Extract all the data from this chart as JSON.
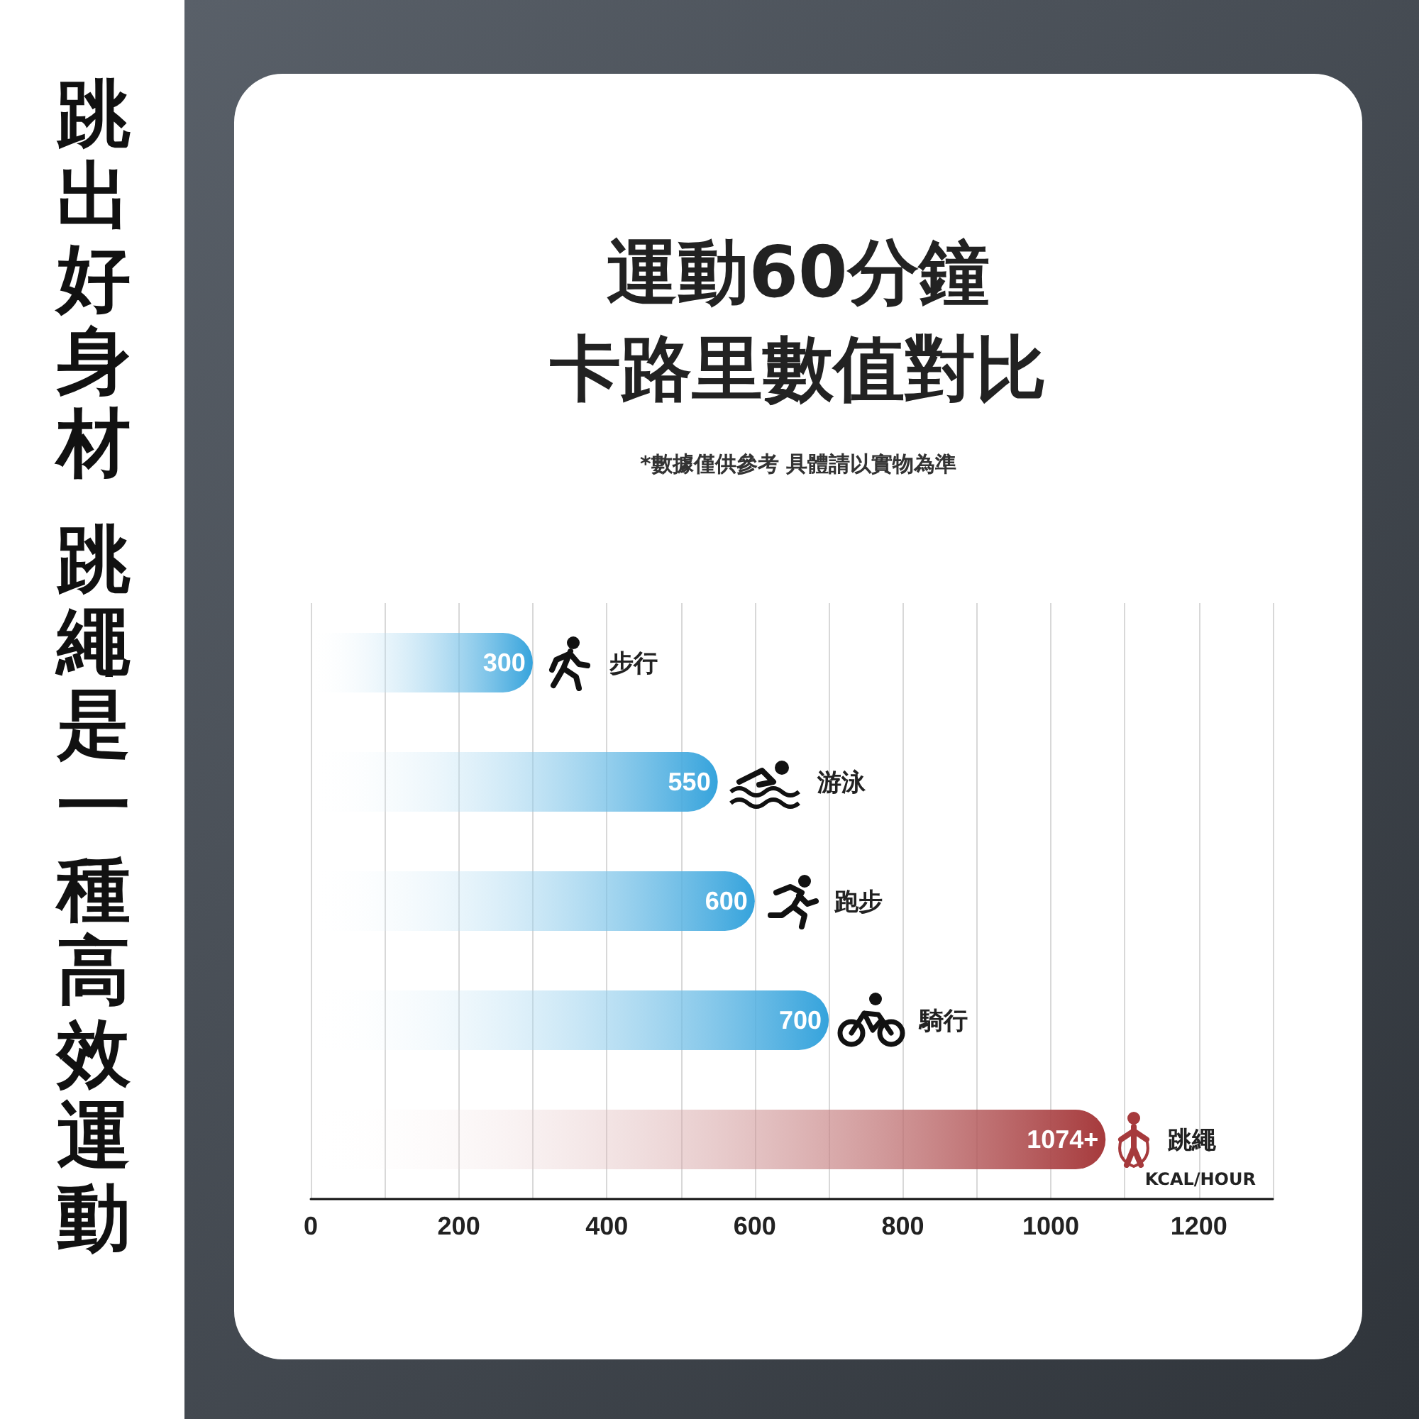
{
  "chart_data": {
    "type": "bar",
    "orientation": "horizontal",
    "title": "運動60分鐘",
    "subtitle": "卡路里數值對比",
    "xlabel": "KCAL/HOUR",
    "annotations": [
      "*數據僅供參考 具體請以實物為準",
      "跳出好身材",
      "跳繩是一種高效運動"
    ],
    "categories": [
      "步行",
      "游泳",
      "跑步",
      "騎行",
      "跳繩"
    ],
    "values": [
      300,
      550,
      600,
      700,
      1074
    ],
    "value_labels": [
      "300",
      "550",
      "600",
      "700",
      "1074+"
    ],
    "colors": [
      "#35a3dc",
      "#35a3dc",
      "#35a3dc",
      "#35a3dc",
      "#a63a3c"
    ],
    "xlim": [
      0,
      1300
    ],
    "xticks": [
      0,
      {
        "value": 100,
        "label": null
      },
      200,
      {
        "value": 300,
        "label": null
      },
      400,
      {
        "value": 500,
        "label": null
      },
      600,
      {
        "value": 700,
        "label": null
      },
      800,
      {
        "value": 900,
        "label": null
      },
      1000,
      {
        "value": 1100,
        "label": null
      },
      1200,
      {
        "value": 1300,
        "label": null
      }
    ],
    "grid": "x"
  }
}
